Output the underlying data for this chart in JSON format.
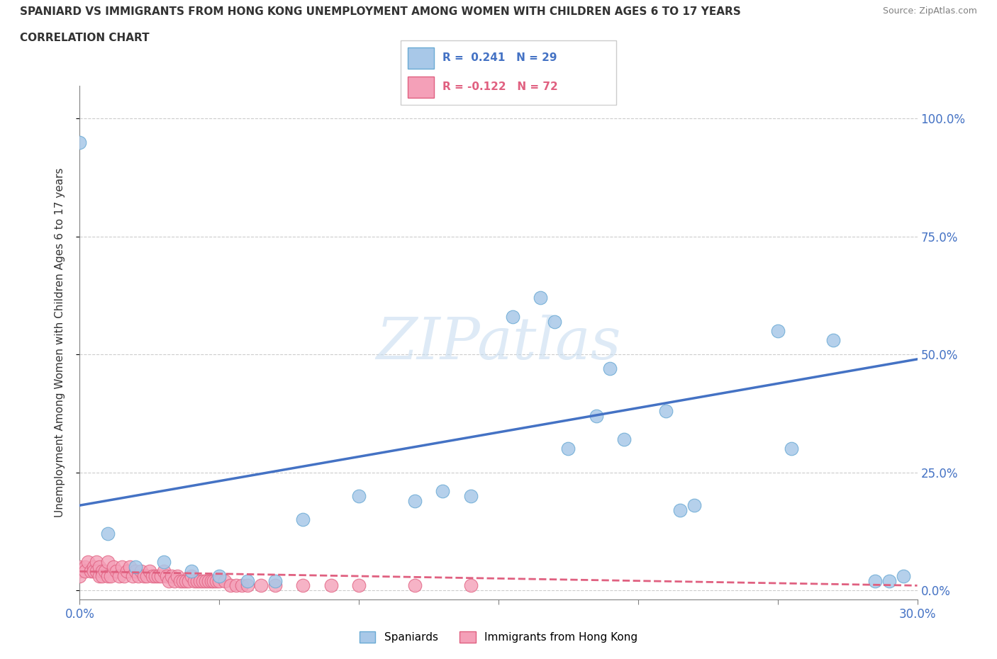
{
  "title_line1": "SPANIARD VS IMMIGRANTS FROM HONG KONG UNEMPLOYMENT AMONG WOMEN WITH CHILDREN AGES 6 TO 17 YEARS",
  "title_line2": "CORRELATION CHART",
  "source": "Source: ZipAtlas.com",
  "ylabel": "Unemployment Among Women with Children Ages 6 to 17 years",
  "yticks": [
    "0.0%",
    "25.0%",
    "50.0%",
    "75.0%",
    "100.0%"
  ],
  "ytick_vals": [
    0.0,
    0.25,
    0.5,
    0.75,
    1.0
  ],
  "xlim": [
    0.0,
    0.3
  ],
  "ylim": [
    -0.02,
    1.07
  ],
  "spaniards_color": "#a8c8e8",
  "immigrants_color": "#f4a0b8",
  "spaniards_edge_color": "#6aaad4",
  "immigrants_edge_color": "#e06080",
  "spaniards_line_color": "#4472c4",
  "immigrants_line_color": "#e06080",
  "watermark": "ZIPatlas",
  "legend_r1_color": "#4472c4",
  "legend_r2_color": "#e06080",
  "spaniards_x": [
    0.0,
    0.01,
    0.02,
    0.03,
    0.04,
    0.05,
    0.06,
    0.07,
    0.08,
    0.1,
    0.12,
    0.13,
    0.14,
    0.155,
    0.165,
    0.17,
    0.175,
    0.185,
    0.19,
    0.195,
    0.21,
    0.215,
    0.22,
    0.255,
    0.27,
    0.285,
    0.29,
    0.295,
    0.25
  ],
  "spaniards_y": [
    0.95,
    0.12,
    0.05,
    0.06,
    0.04,
    0.03,
    0.02,
    0.02,
    0.15,
    0.2,
    0.19,
    0.21,
    0.2,
    0.58,
    0.62,
    0.57,
    0.3,
    0.37,
    0.47,
    0.32,
    0.38,
    0.17,
    0.18,
    0.3,
    0.53,
    0.02,
    0.02,
    0.03,
    0.55
  ],
  "immigrants_x": [
    0.0,
    0.0,
    0.0,
    0.002,
    0.002,
    0.003,
    0.004,
    0.005,
    0.005,
    0.006,
    0.006,
    0.007,
    0.007,
    0.008,
    0.008,
    0.009,
    0.01,
    0.01,
    0.011,
    0.012,
    0.013,
    0.014,
    0.015,
    0.016,
    0.017,
    0.018,
    0.019,
    0.02,
    0.021,
    0.022,
    0.023,
    0.024,
    0.025,
    0.026,
    0.027,
    0.028,
    0.029,
    0.03,
    0.031,
    0.032,
    0.033,
    0.034,
    0.035,
    0.036,
    0.037,
    0.038,
    0.039,
    0.04,
    0.041,
    0.042,
    0.043,
    0.044,
    0.045,
    0.046,
    0.047,
    0.048,
    0.049,
    0.05,
    0.052,
    0.054,
    0.056,
    0.058,
    0.06,
    0.065,
    0.07,
    0.08,
    0.09,
    0.1,
    0.12,
    0.14
  ],
  "immigrants_y": [
    0.04,
    0.05,
    0.03,
    0.05,
    0.04,
    0.06,
    0.04,
    0.05,
    0.04,
    0.06,
    0.04,
    0.05,
    0.03,
    0.04,
    0.03,
    0.04,
    0.06,
    0.03,
    0.03,
    0.05,
    0.04,
    0.03,
    0.05,
    0.03,
    0.04,
    0.05,
    0.03,
    0.04,
    0.03,
    0.04,
    0.03,
    0.03,
    0.04,
    0.03,
    0.03,
    0.03,
    0.03,
    0.04,
    0.03,
    0.02,
    0.03,
    0.02,
    0.03,
    0.02,
    0.02,
    0.02,
    0.02,
    0.03,
    0.02,
    0.02,
    0.02,
    0.02,
    0.02,
    0.02,
    0.02,
    0.02,
    0.02,
    0.02,
    0.02,
    0.01,
    0.01,
    0.01,
    0.01,
    0.01,
    0.01,
    0.01,
    0.01,
    0.01,
    0.01,
    0.01
  ],
  "sp_line_x": [
    0.0,
    0.3
  ],
  "sp_line_y": [
    0.18,
    0.49
  ],
  "im_line_x": [
    0.0,
    0.3
  ],
  "im_line_y": [
    0.04,
    0.01
  ],
  "xtick_positions": [
    0.0,
    0.05,
    0.1,
    0.15,
    0.2,
    0.25,
    0.3
  ],
  "xtick_labels": [
    "0.0%",
    "",
    "",
    "",
    "",
    "",
    "30.0%"
  ]
}
